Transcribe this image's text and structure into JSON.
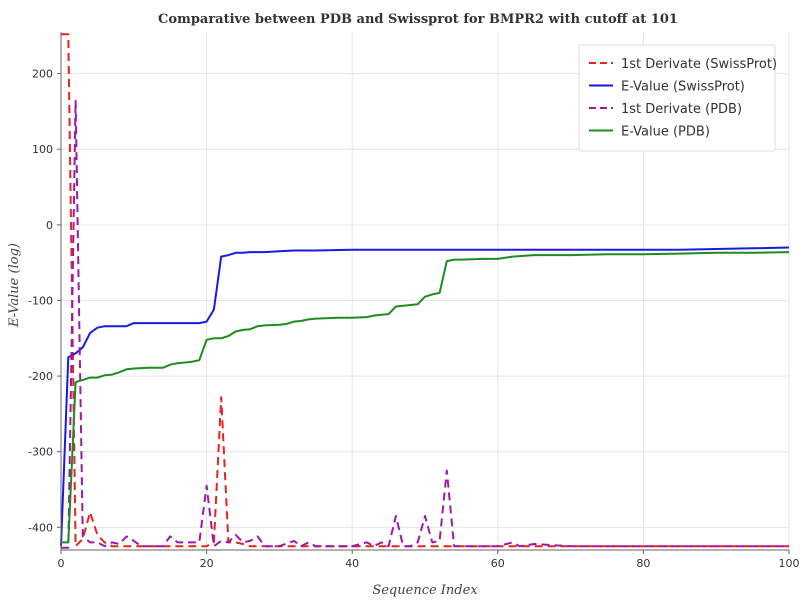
{
  "chart_data": {
    "type": "line",
    "title": "Comparative between PDB and Swissprot for BMPR2 with cutoff at 101",
    "xlabel": "Sequence Index",
    "ylabel": "E-Value (log)",
    "xlim": [
      0,
      100
    ],
    "ylim": [
      -430,
      255
    ],
    "x_ticks": [
      0,
      20,
      40,
      60,
      80,
      100
    ],
    "y_ticks": [
      -400,
      -300,
      -200,
      -100,
      0,
      100,
      200
    ],
    "grid": true,
    "legend_position": "top-right",
    "series": [
      {
        "name": "1st Derivate (SwissProt)",
        "color": "#e8221e",
        "dash": "dashed",
        "points": [
          [
            0,
            252
          ],
          [
            1,
            252
          ],
          [
            2,
            -425
          ],
          [
            3,
            -415
          ],
          [
            4,
            -380
          ],
          [
            5,
            -410
          ],
          [
            6,
            -420
          ],
          [
            7,
            -425
          ],
          [
            8,
            -425
          ],
          [
            9,
            -425
          ],
          [
            10,
            -425
          ],
          [
            12,
            -425
          ],
          [
            14,
            -425
          ],
          [
            16,
            -425
          ],
          [
            18,
            -425
          ],
          [
            20,
            -425
          ],
          [
            21,
            -420
          ],
          [
            22,
            -228
          ],
          [
            23,
            -420
          ],
          [
            24,
            -420
          ],
          [
            25,
            -422
          ],
          [
            26,
            -425
          ],
          [
            28,
            -425
          ],
          [
            30,
            -425
          ],
          [
            35,
            -425
          ],
          [
            40,
            -425
          ],
          [
            45,
            -425
          ],
          [
            50,
            -425
          ],
          [
            55,
            -425
          ],
          [
            60,
            -425
          ],
          [
            65,
            -425
          ],
          [
            70,
            -425
          ],
          [
            75,
            -425
          ],
          [
            80,
            -425
          ],
          [
            85,
            -425
          ],
          [
            90,
            -425
          ],
          [
            95,
            -425
          ],
          [
            100,
            -425
          ]
        ]
      },
      {
        "name": "E-Value (SwissProt)",
        "color": "#1a1ae6",
        "dash": "solid",
        "points": [
          [
            0,
            -425
          ],
          [
            1,
            -175
          ],
          [
            2,
            -170
          ],
          [
            3,
            -162
          ],
          [
            4,
            -143
          ],
          [
            5,
            -136
          ],
          [
            6,
            -134
          ],
          [
            8,
            -134
          ],
          [
            9,
            -134
          ],
          [
            10,
            -130
          ],
          [
            12,
            -130
          ],
          [
            14,
            -130
          ],
          [
            16,
            -130
          ],
          [
            18,
            -130
          ],
          [
            19,
            -130
          ],
          [
            20,
            -128
          ],
          [
            21,
            -112
          ],
          [
            22,
            -42
          ],
          [
            23,
            -40
          ],
          [
            24,
            -37
          ],
          [
            25,
            -37
          ],
          [
            26,
            -36
          ],
          [
            28,
            -36
          ],
          [
            30,
            -35
          ],
          [
            32,
            -34
          ],
          [
            35,
            -34
          ],
          [
            40,
            -33
          ],
          [
            45,
            -33
          ],
          [
            50,
            -33
          ],
          [
            55,
            -33
          ],
          [
            60,
            -33
          ],
          [
            65,
            -33
          ],
          [
            70,
            -33
          ],
          [
            75,
            -33
          ],
          [
            80,
            -33
          ],
          [
            85,
            -33
          ],
          [
            90,
            -32
          ],
          [
            95,
            -31
          ],
          [
            100,
            -30
          ]
        ]
      },
      {
        "name": "1st Derivate (PDB)",
        "color": "#9b1ba8",
        "dash": "dashed",
        "points": [
          [
            0,
            -427
          ],
          [
            1,
            -427
          ],
          [
            2,
            165
          ],
          [
            3,
            -412
          ],
          [
            4,
            -420
          ],
          [
            5,
            -420
          ],
          [
            6,
            -425
          ],
          [
            7,
            -420
          ],
          [
            8,
            -422
          ],
          [
            9,
            -412
          ],
          [
            10,
            -418
          ],
          [
            11,
            -425
          ],
          [
            12,
            -425
          ],
          [
            14,
            -425
          ],
          [
            15,
            -412
          ],
          [
            16,
            -420
          ],
          [
            17,
            -420
          ],
          [
            18,
            -420
          ],
          [
            19,
            -420
          ],
          [
            20,
            -345
          ],
          [
            21,
            -425
          ],
          [
            22,
            -418
          ],
          [
            23,
            -420
          ],
          [
            24,
            -410
          ],
          [
            25,
            -420
          ],
          [
            26,
            -418
          ],
          [
            27,
            -412
          ],
          [
            28,
            -425
          ],
          [
            30,
            -425
          ],
          [
            32,
            -418
          ],
          [
            33,
            -425
          ],
          [
            34,
            -420
          ],
          [
            35,
            -425
          ],
          [
            40,
            -425
          ],
          [
            42,
            -420
          ],
          [
            43,
            -425
          ],
          [
            44,
            -420
          ],
          [
            45,
            -425
          ],
          [
            46,
            -385
          ],
          [
            47,
            -425
          ],
          [
            48,
            -425
          ],
          [
            49,
            -420
          ],
          [
            50,
            -385
          ],
          [
            51,
            -420
          ],
          [
            52,
            -418
          ],
          [
            53,
            -325
          ],
          [
            54,
            -425
          ],
          [
            55,
            -425
          ],
          [
            60,
            -425
          ],
          [
            62,
            -420
          ],
          [
            63,
            -425
          ],
          [
            65,
            -422
          ],
          [
            70,
            -425
          ],
          [
            75,
            -425
          ],
          [
            80,
            -425
          ],
          [
            85,
            -425
          ],
          [
            90,
            -425
          ],
          [
            95,
            -425
          ],
          [
            100,
            -425
          ]
        ]
      },
      {
        "name": "E-Value (PDB)",
        "color": "#1e8c1e",
        "dash": "solid",
        "points": [
          [
            0,
            -420
          ],
          [
            1,
            -420
          ],
          [
            2,
            -208
          ],
          [
            3,
            -205
          ],
          [
            4,
            -202
          ],
          [
            5,
            -202
          ],
          [
            6,
            -199
          ],
          [
            7,
            -198
          ],
          [
            8,
            -195
          ],
          [
            9,
            -191
          ],
          [
            10,
            -190
          ],
          [
            12,
            -189
          ],
          [
            14,
            -189
          ],
          [
            15,
            -185
          ],
          [
            16,
            -183
          ],
          [
            18,
            -181
          ],
          [
            19,
            -179
          ],
          [
            20,
            -152
          ],
          [
            21,
            -150
          ],
          [
            22,
            -150
          ],
          [
            23,
            -147
          ],
          [
            24,
            -141
          ],
          [
            25,
            -139
          ],
          [
            26,
            -138
          ],
          [
            27,
            -134
          ],
          [
            28,
            -133
          ],
          [
            30,
            -132
          ],
          [
            31,
            -131
          ],
          [
            32,
            -128
          ],
          [
            33,
            -127
          ],
          [
            34,
            -125
          ],
          [
            35,
            -124
          ],
          [
            38,
            -123
          ],
          [
            40,
            -123
          ],
          [
            42,
            -122
          ],
          [
            43,
            -120
          ],
          [
            44,
            -119
          ],
          [
            45,
            -118
          ],
          [
            46,
            -108
          ],
          [
            47,
            -107
          ],
          [
            48,
            -106
          ],
          [
            49,
            -105
          ],
          [
            50,
            -95
          ],
          [
            51,
            -92
          ],
          [
            52,
            -90
          ],
          [
            53,
            -48
          ],
          [
            54,
            -46
          ],
          [
            55,
            -46
          ],
          [
            58,
            -45
          ],
          [
            60,
            -45
          ],
          [
            62,
            -42
          ],
          [
            65,
            -40
          ],
          [
            70,
            -40
          ],
          [
            75,
            -39
          ],
          [
            80,
            -39
          ],
          [
            85,
            -38
          ],
          [
            90,
            -37
          ],
          [
            95,
            -37
          ],
          [
            100,
            -36
          ]
        ]
      }
    ]
  }
}
